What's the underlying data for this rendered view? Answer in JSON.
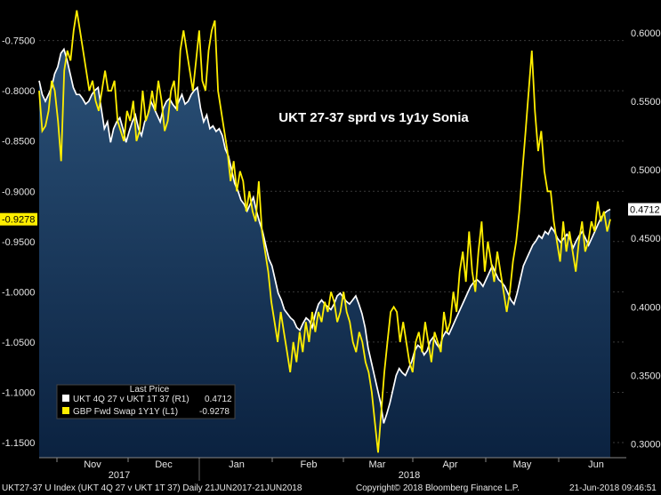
{
  "chart_data": {
    "type": "line",
    "title": "UKT 27-37 sprd vs 1y1y Sonia",
    "x_labels": [
      "Nov",
      "Dec",
      "Jan",
      "Feb",
      "Mar",
      "Apr",
      "May",
      "Jun"
    ],
    "year_labels": [
      "2017",
      "2018"
    ],
    "left_axis": {
      "ticks": [
        "-0.7500",
        "-0.8000",
        "-0.8500",
        "-0.9000",
        "-0.9500",
        "-1.0000",
        "-1.0500",
        "-1.1000",
        "-1.1500"
      ],
      "range": [
        -1.165,
        -0.715
      ],
      "last_value": "-0.9278",
      "last_value_number": -0.9278
    },
    "right_axis": {
      "ticks": [
        "0.6000",
        "0.5500",
        "0.5000",
        "0.4500",
        "0.4000",
        "0.3500",
        "0.3000"
      ],
      "range": [
        0.29,
        0.62
      ],
      "last_value": "0.4712",
      "last_value_number": 0.4712
    },
    "legend": {
      "header": "Last Price",
      "entries": [
        {
          "label": "UKT 4Q 27 v UKT 1T 37  (R1)",
          "value": "0.4712",
          "color": "#ffffff"
        },
        {
          "label": "GBP Fwd Swap 1Y1Y  (L1)",
          "value": "-0.9278",
          "color": "#ffee00"
        }
      ]
    },
    "series": [
      {
        "axis": "right",
        "color": "#ffffff",
        "values": [
          0.565,
          0.555,
          0.55,
          0.555,
          0.56,
          0.57,
          0.575,
          0.585,
          0.588,
          0.58,
          0.57,
          0.56,
          0.555,
          0.555,
          0.552,
          0.548,
          0.55,
          0.555,
          0.558,
          0.56,
          0.545,
          0.53,
          0.535,
          0.52,
          0.53,
          0.535,
          0.538,
          0.53,
          0.52,
          0.528,
          0.535,
          0.54,
          0.53,
          0.525,
          0.535,
          0.54,
          0.55,
          0.545,
          0.54,
          0.535,
          0.545,
          0.55,
          0.552,
          0.548,
          0.545,
          0.55,
          0.555,
          0.548,
          0.55,
          0.555,
          0.558,
          0.56,
          0.545,
          0.535,
          0.54,
          0.53,
          0.532,
          0.528,
          0.53,
          0.525,
          0.515,
          0.51,
          0.5,
          0.49,
          0.485,
          0.478,
          0.475,
          0.47,
          0.475,
          0.48,
          0.47,
          0.462,
          0.455,
          0.445,
          0.435,
          0.43,
          0.42,
          0.41,
          0.405,
          0.398,
          0.395,
          0.392,
          0.39,
          0.385,
          0.383,
          0.388,
          0.392,
          0.39,
          0.385,
          0.395,
          0.402,
          0.405,
          0.402,
          0.4,
          0.398,
          0.402,
          0.408,
          0.41,
          0.407,
          0.404,
          0.402,
          0.405,
          0.408,
          0.402,
          0.395,
          0.385,
          0.37,
          0.36,
          0.35,
          0.34,
          0.33,
          0.315,
          0.322,
          0.33,
          0.34,
          0.35,
          0.355,
          0.352,
          0.35,
          0.355,
          0.36,
          0.368,
          0.372,
          0.37,
          0.365,
          0.368,
          0.375,
          0.378,
          0.373,
          0.37,
          0.378,
          0.382,
          0.38,
          0.385,
          0.39,
          0.395,
          0.4,
          0.405,
          0.41,
          0.415,
          0.418,
          0.42,
          0.418,
          0.415,
          0.42,
          0.425,
          0.43,
          0.425,
          0.42,
          0.418,
          0.415,
          0.41,
          0.405,
          0.402,
          0.41,
          0.42,
          0.43,
          0.435,
          0.44,
          0.445,
          0.448,
          0.452,
          0.45,
          0.455,
          0.453,
          0.458,
          0.455,
          0.45,
          0.447,
          0.45,
          0.453,
          0.45,
          0.443,
          0.448,
          0.452,
          0.455,
          0.45,
          0.445,
          0.45,
          0.455,
          0.46,
          0.465,
          0.468,
          0.47,
          0.4712
        ]
      },
      {
        "axis": "left",
        "color": "#ffee00",
        "values": [
          -0.8,
          -0.84,
          -0.835,
          -0.82,
          -0.79,
          -0.8,
          -0.83,
          -0.87,
          -0.78,
          -0.76,
          -0.77,
          -0.74,
          -0.72,
          -0.74,
          -0.76,
          -0.78,
          -0.8,
          -0.79,
          -0.81,
          -0.82,
          -0.8,
          -0.78,
          -0.8,
          -0.8,
          -0.79,
          -0.83,
          -0.84,
          -0.85,
          -0.82,
          -0.83,
          -0.81,
          -0.85,
          -0.84,
          -0.8,
          -0.83,
          -0.82,
          -0.8,
          -0.82,
          -0.79,
          -0.81,
          -0.84,
          -0.83,
          -0.8,
          -0.79,
          -0.82,
          -0.76,
          -0.74,
          -0.76,
          -0.78,
          -0.8,
          -0.77,
          -0.74,
          -0.79,
          -0.8,
          -0.76,
          -0.74,
          -0.73,
          -0.8,
          -0.82,
          -0.84,
          -0.86,
          -0.89,
          -0.87,
          -0.9,
          -0.88,
          -0.89,
          -0.92,
          -0.9,
          -0.92,
          -0.93,
          -0.89,
          -0.94,
          -0.96,
          -0.98,
          -1.01,
          -1.03,
          -1.05,
          -1.02,
          -1.04,
          -1.06,
          -1.08,
          -1.05,
          -1.07,
          -1.04,
          -1.06,
          -1.03,
          -1.05,
          -1.02,
          -1.04,
          -1.02,
          -1.03,
          -1.01,
          -1.02,
          -1.0,
          -1.01,
          -1.03,
          -1.02,
          -1.0,
          -1.02,
          -1.03,
          -1.05,
          -1.06,
          -1.04,
          -1.05,
          -1.07,
          -1.08,
          -1.1,
          -1.13,
          -1.16,
          -1.12,
          -1.08,
          -1.05,
          -1.02,
          -1.015,
          -1.02,
          -1.05,
          -1.03,
          -1.05,
          -1.07,
          -1.08,
          -1.05,
          -1.04,
          -1.06,
          -1.03,
          -1.05,
          -1.07,
          -1.04,
          -1.05,
          -1.06,
          -1.02,
          -1.04,
          -1.03,
          -1.0,
          -1.02,
          -0.98,
          -0.96,
          -0.99,
          -0.94,
          -0.98,
          -1.0,
          -0.96,
          -0.93,
          -0.98,
          -0.95,
          -0.97,
          -0.99,
          -0.96,
          -0.98,
          -1.0,
          -1.02,
          -1.0,
          -0.97,
          -0.95,
          -0.92,
          -0.88,
          -0.84,
          -0.8,
          -0.76,
          -0.82,
          -0.86,
          -0.84,
          -0.88,
          -0.9,
          -0.9,
          -0.93,
          -0.95,
          -0.97,
          -0.93,
          -0.96,
          -0.94,
          -0.96,
          -0.98,
          -0.95,
          -0.93,
          -0.96,
          -0.95,
          -0.93,
          -0.94,
          -0.91,
          -0.93,
          -0.92,
          -0.94,
          -0.9278
        ]
      }
    ]
  },
  "footer": {
    "ticker": "UKT27-37 U Index (UKT 4Q 27 v UKT 1T 37)  Daily 21JUN2017-21JUN2018",
    "copyright": "Copyright© 2018 Bloomberg Finance L.P.",
    "timestamp": "21-Jun-2018 09:46:51"
  }
}
